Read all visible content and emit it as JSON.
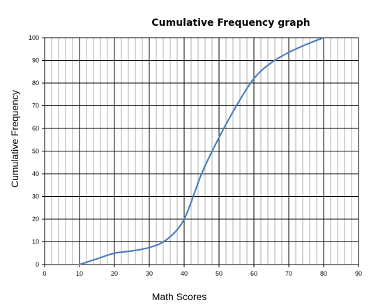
{
  "chart_data": {
    "type": "line",
    "title": "Cumulative Frequency graph",
    "xlabel": "Math Scores",
    "ylabel": "Cumulative Frequency",
    "xlim": [
      0,
      90
    ],
    "ylim": [
      0,
      100
    ],
    "xticks": [
      0,
      10,
      20,
      30,
      40,
      50,
      60,
      70,
      80,
      90
    ],
    "yticks": [
      0,
      10,
      20,
      30,
      40,
      50,
      60,
      70,
      80,
      90,
      100
    ],
    "x_minor_step": 2,
    "grid": true,
    "legend": "none",
    "series": [
      {
        "color": "#4a7ebb",
        "x": [
          10,
          15,
          20,
          25,
          30,
          35,
          40,
          45,
          50,
          55,
          60,
          65,
          70,
          75,
          80
        ],
        "y": [
          0,
          2.5,
          5,
          6,
          7.5,
          11,
          20,
          40,
          56,
          70,
          82,
          89,
          93.5,
          97,
          100
        ]
      }
    ]
  }
}
